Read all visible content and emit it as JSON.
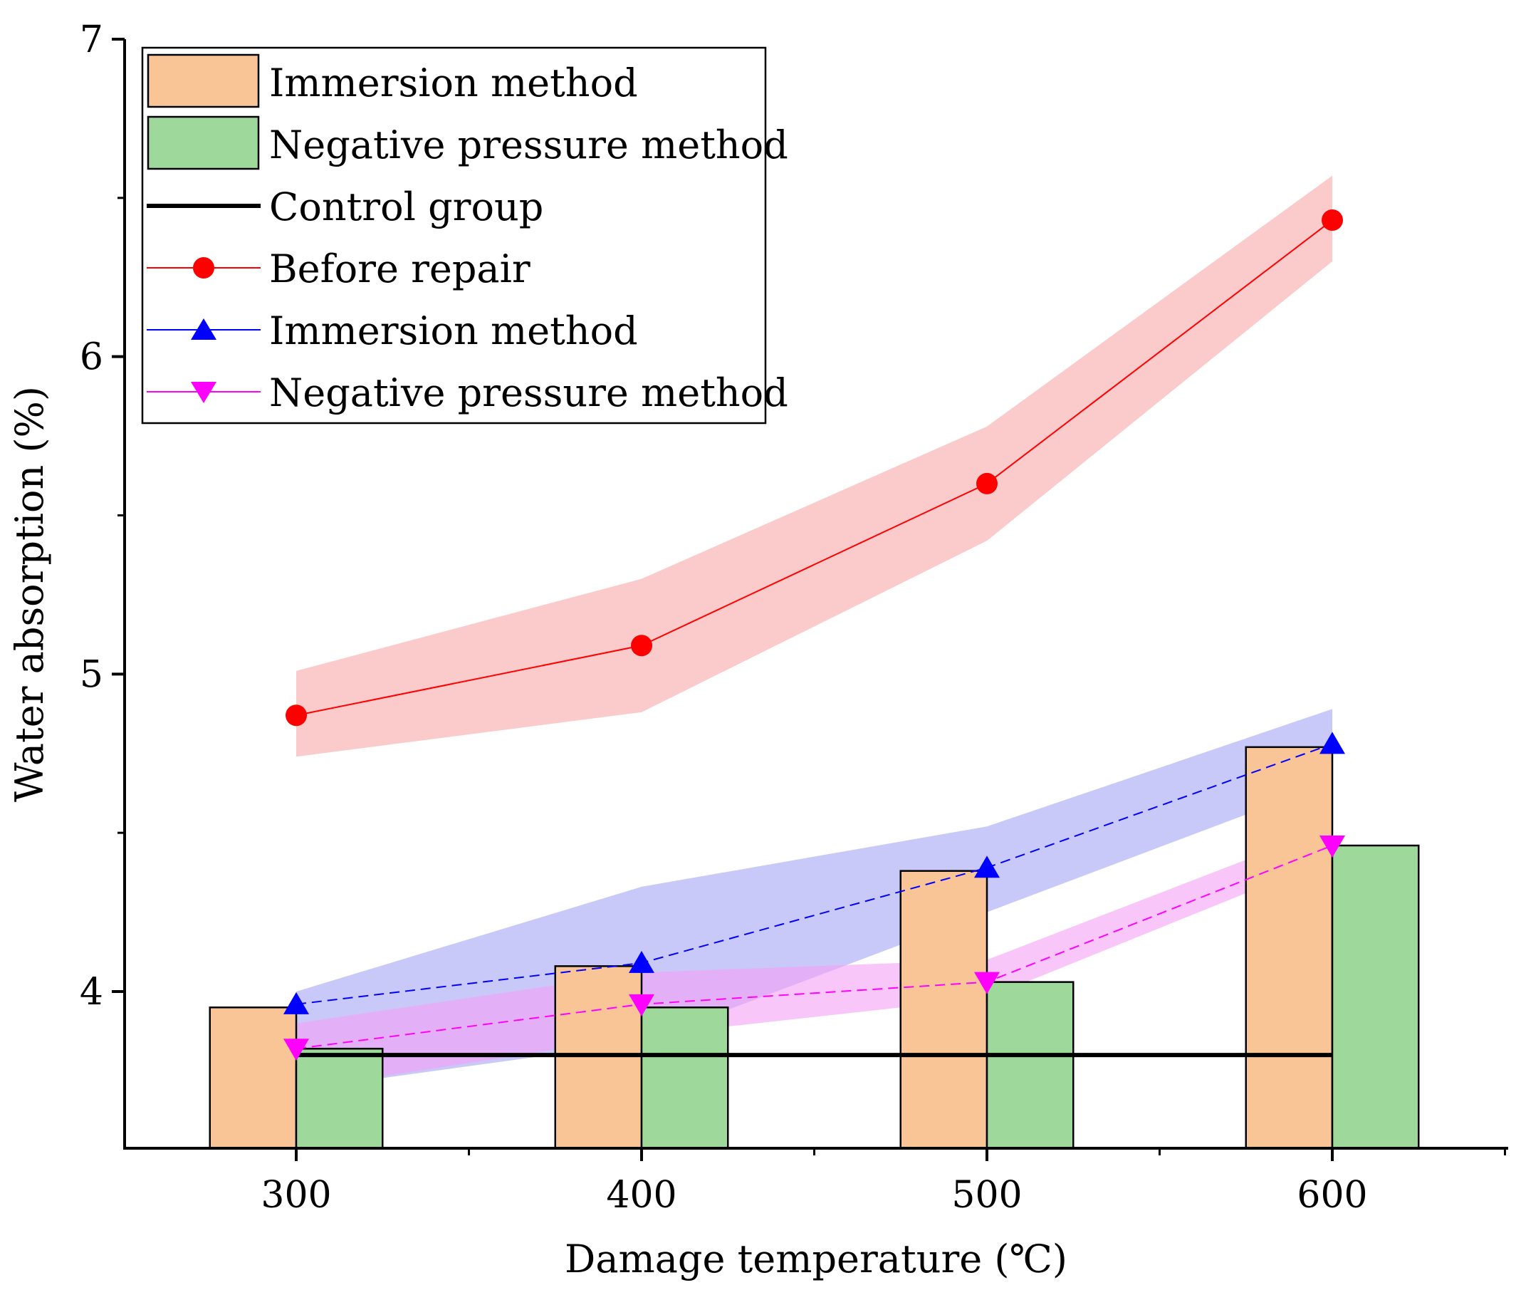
{
  "chart_data": {
    "type": "bar",
    "title": "",
    "xlabel": "Damage temperature (℃)",
    "ylabel": "Water absorption (%)",
    "x": [
      300,
      400,
      500,
      600
    ],
    "xlim": [
      250,
      650
    ],
    "ylim": [
      3.5,
      7.0
    ],
    "xticks": [
      300,
      400,
      500,
      600
    ],
    "yticks": [
      4,
      5,
      6,
      7
    ],
    "grid": false,
    "legend_position": "top-left",
    "bar_series": [
      {
        "name": "Immersion method",
        "values": [
          3.95,
          4.08,
          4.38,
          4.77
        ],
        "color": "#f9c597"
      },
      {
        "name": "Negative pressure method",
        "values": [
          3.82,
          3.95,
          4.03,
          4.46
        ],
        "color": "#9ed89b"
      }
    ],
    "line_series": [
      {
        "name": "Before repair",
        "values": [
          4.87,
          5.09,
          5.6,
          6.43
        ],
        "band_lower": [
          4.74,
          4.88,
          5.42,
          6.3
        ],
        "band_upper": [
          5.01,
          5.3,
          5.78,
          6.57
        ],
        "color": "#ff0000",
        "band_color": "#f8a7a7",
        "marker": "circle",
        "dash": "solid"
      },
      {
        "name": "Immersion method",
        "values": [
          3.96,
          4.09,
          4.39,
          4.78
        ],
        "band_lower": [
          3.69,
          3.84,
          4.25,
          4.66
        ],
        "band_upper": [
          4.0,
          4.33,
          4.52,
          4.89
        ],
        "color": "#0000ff",
        "band_color": "#a5a5f5",
        "marker": "triangle-up",
        "dash": "dashed"
      },
      {
        "name": "Negative pressure method",
        "values": [
          3.82,
          3.96,
          4.03,
          4.46
        ],
        "band_lower": [
          3.69,
          3.86,
          3.98,
          4.42
        ],
        "band_upper": [
          3.9,
          4.06,
          4.1,
          4.52
        ],
        "color": "#ff00ff",
        "band_color": "#f5a0f5",
        "marker": "triangle-down",
        "dash": "dashed"
      }
    ],
    "control_group": {
      "name": "Control group",
      "value": 3.8,
      "x_range": [
        300,
        600
      ],
      "color": "#000000"
    }
  }
}
